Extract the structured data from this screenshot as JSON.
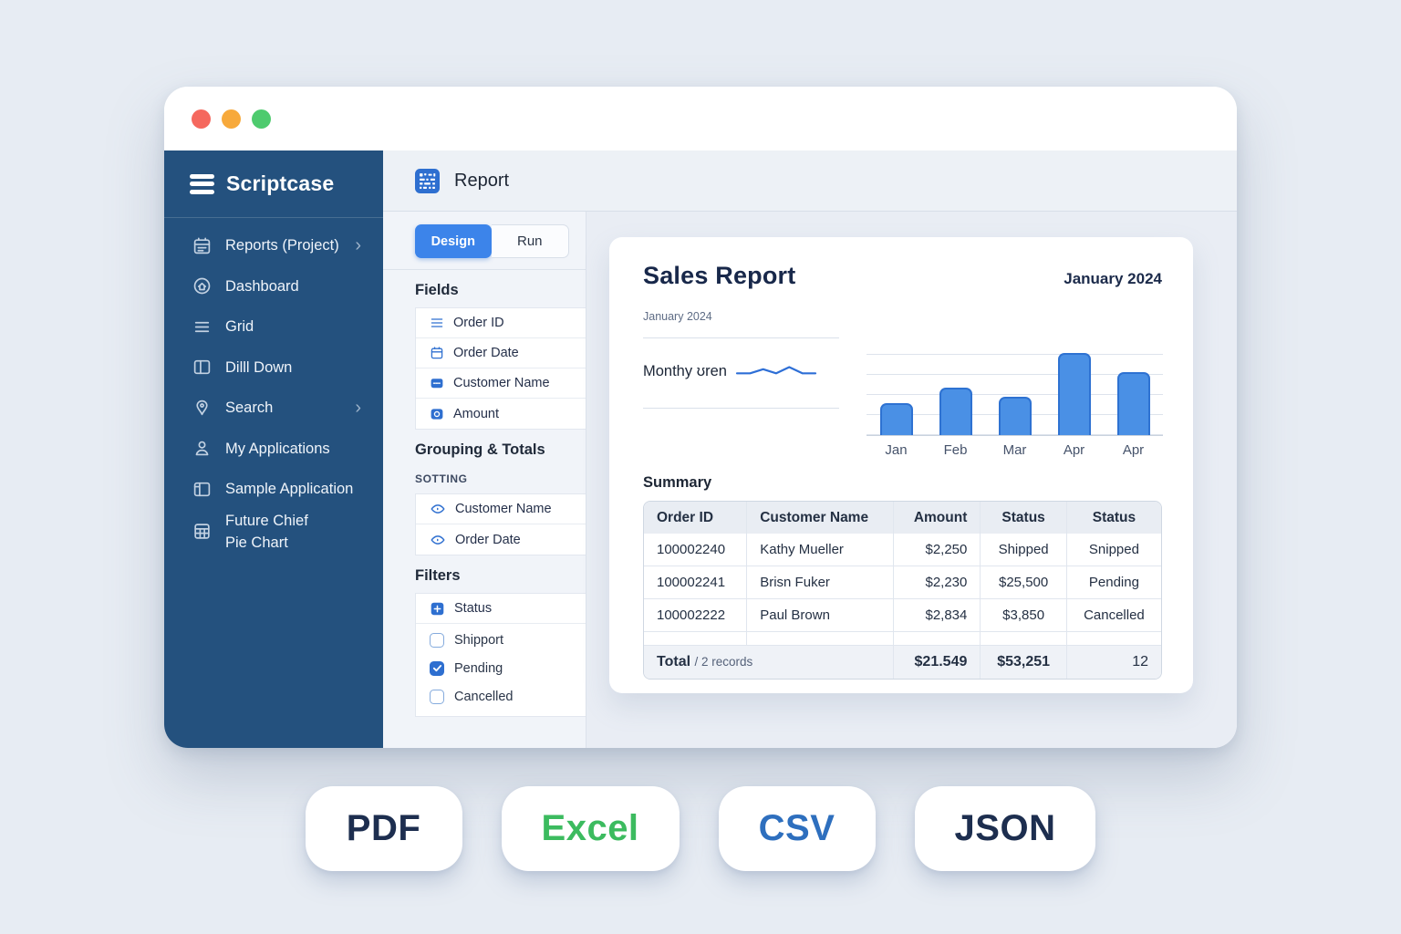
{
  "window": {
    "controls": [
      {
        "id": "close",
        "color": "#f5685e"
      },
      {
        "id": "minimize",
        "color": "#f7a93b"
      },
      {
        "id": "zoom",
        "color": "#4ecb6e"
      }
    ]
  },
  "sidebar": {
    "logo_text": "Scriptcase",
    "items": [
      {
        "id": "reports-project",
        "label": "Reports (Project)",
        "icon": "calendar",
        "chevron": true
      },
      {
        "id": "dashboard",
        "label": "Dashboard",
        "icon": "home",
        "chevron": false
      },
      {
        "id": "grid",
        "label": "Grid",
        "icon": "bars",
        "chevron": false
      },
      {
        "id": "drill-down",
        "label": "Dilll Down",
        "icon": "drill",
        "chevron": false
      },
      {
        "id": "search",
        "label": "Search",
        "icon": "pin",
        "chevron": true
      },
      {
        "id": "my-applications",
        "label": "My Applications",
        "icon": "user",
        "chevron": false
      },
      {
        "id": "sample-application",
        "label": "Sample Application",
        "icon": "app",
        "chevron": false
      },
      {
        "id": "future-chief-pie-chart",
        "label": "Future Chief\nPie Chart",
        "icon": "table",
        "chevron": false
      }
    ]
  },
  "header": {
    "title": "Report"
  },
  "designer": {
    "tabs": [
      {
        "id": "design",
        "label": "Design",
        "active": true
      },
      {
        "id": "run",
        "label": "Run",
        "active": false
      }
    ],
    "fields": {
      "title": "Fields",
      "items": [
        {
          "label": "Order ID",
          "icon": "lines"
        },
        {
          "label": "Order Date",
          "icon": "calendar-outline"
        },
        {
          "label": "Customer Name",
          "icon": "square-badge"
        },
        {
          "label": "Amount",
          "icon": "square-coin"
        }
      ]
    },
    "grouping": {
      "title": "Grouping & Totals",
      "subtitle": "SOTTING",
      "items": [
        {
          "label": "Customer Name",
          "icon": "eye"
        },
        {
          "label": "Order Date",
          "icon": "eye"
        }
      ]
    },
    "filters": {
      "title": "Filters",
      "field": {
        "label": "Status",
        "icon": "square-plus"
      },
      "options": [
        {
          "label": "Shipport",
          "checked": false
        },
        {
          "label": "Pending",
          "checked": true
        },
        {
          "label": "Cancelled",
          "checked": false
        }
      ]
    }
  },
  "report": {
    "title": "Sales Report",
    "period": "January 2024",
    "left_panel": {
      "subtitle": "January 2024",
      "trend_label": "Monthy ʊren"
    },
    "summary": {
      "title": "Summary",
      "columns": [
        "Order ID",
        "Customer Name",
        "Amount",
        "Status",
        "Status"
      ],
      "rows": [
        [
          "100002240",
          "Kathy Mueller",
          "$2,250",
          "Shipped",
          "Snipped"
        ],
        [
          "100002241",
          "Brisn Fuker",
          "$2,230",
          "$25,500",
          "Pending"
        ],
        [
          "100002222",
          "Paul Brown",
          "$2,834",
          "$3,850",
          "Cancelled"
        ]
      ],
      "total": {
        "label": "Total",
        "records": "/ 2 records",
        "amount": "$21.549",
        "status": "$53,251",
        "count": "12"
      }
    }
  },
  "chart_data": [
    {
      "type": "bar",
      "title": "Sales Report monthly bars — January 2024",
      "categories": [
        "Jan",
        "Feb",
        "Mar",
        "Apr",
        "Apr"
      ],
      "values": [
        32,
        48,
        39,
        83,
        63
      ],
      "xlabel": "",
      "ylabel": "",
      "ylim": [
        0,
        100
      ],
      "grid": true,
      "legend": false,
      "bar_fill": "#4a90e5",
      "bar_border": "#2e72d2"
    },
    {
      "type": "line",
      "title": "Monthy ʊren sparkline",
      "x": [
        0,
        1,
        2,
        3,
        4,
        5,
        6
      ],
      "values": [
        3,
        3,
        5,
        3,
        6,
        3,
        3
      ],
      "ylim": [
        0,
        8
      ],
      "line_color": "#2e6fd6"
    }
  ],
  "export_buttons": [
    {
      "id": "pdf",
      "label": "PDF",
      "color": "#1d2e4f"
    },
    {
      "id": "excel",
      "label": "Excel",
      "color": "#3cbb5f"
    },
    {
      "id": "csv",
      "label": "CSV",
      "color": "#2e6fbe"
    },
    {
      "id": "json",
      "label": "JSON",
      "color": "#1d2e4f"
    }
  ]
}
